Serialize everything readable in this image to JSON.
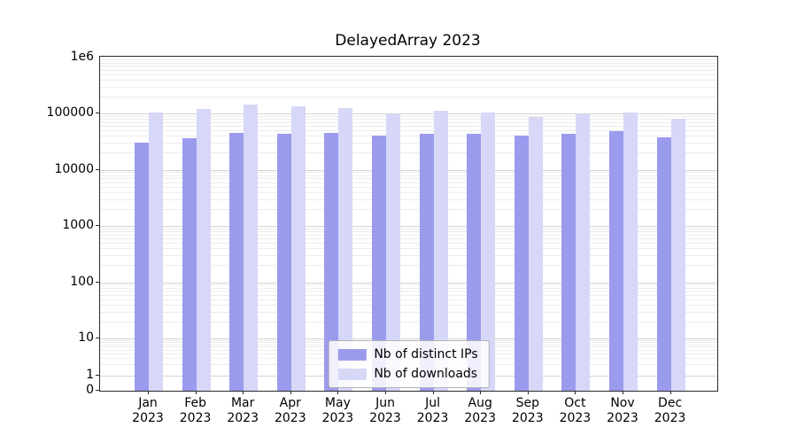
{
  "title": "DelayedArray 2023",
  "colors": {
    "distinct_ips": "#9b9bee",
    "downloads": "#d7d7f8",
    "grid_major": "#d4d4d4",
    "grid_minor": "#ececec",
    "spine": "#2a2a2a"
  },
  "legend": {
    "items": [
      {
        "label": "Nb of distinct IPs",
        "series": "distinct_ips"
      },
      {
        "label": "Nb of downloads",
        "series": "downloads"
      }
    ]
  },
  "chart_data": {
    "type": "bar",
    "yscale": "symlog",
    "title": "DelayedArray 2023",
    "categories": [
      "Jan 2023",
      "Feb 2023",
      "Mar 2023",
      "Apr 2023",
      "May 2023",
      "Jun 2023",
      "Jul 2023",
      "Aug 2023",
      "Sep 2023",
      "Oct 2023",
      "Nov 2023",
      "Dec 2023"
    ],
    "x_ticklabels": [
      {
        "month": "Jan",
        "year": "2023"
      },
      {
        "month": "Feb",
        "year": "2023"
      },
      {
        "month": "Mar",
        "year": "2023"
      },
      {
        "month": "Apr",
        "year": "2023"
      },
      {
        "month": "May",
        "year": "2023"
      },
      {
        "month": "Jun",
        "year": "2023"
      },
      {
        "month": "Jul",
        "year": "2023"
      },
      {
        "month": "Aug",
        "year": "2023"
      },
      {
        "month": "Sep",
        "year": "2023"
      },
      {
        "month": "Oct",
        "year": "2023"
      },
      {
        "month": "Nov",
        "year": "2023"
      },
      {
        "month": "Dec",
        "year": "2023"
      }
    ],
    "series": [
      {
        "name": "Nb of distinct IPs",
        "color_key": "distinct_ips",
        "values": [
          30000,
          36000,
          45000,
          43000,
          45000,
          41000,
          44000,
          43000,
          41000,
          44000,
          48000,
          37000
        ]
      },
      {
        "name": "Nb of downloads",
        "color_key": "downloads",
        "values": [
          105000,
          120000,
          145000,
          135000,
          125000,
          98000,
          110000,
          103000,
          87000,
          97000,
          103000,
          81000
        ]
      }
    ],
    "y_ticks": [
      {
        "value": 0,
        "label": "0"
      },
      {
        "value": 1,
        "label": "1"
      },
      {
        "value": 10,
        "label": "10"
      },
      {
        "value": 100,
        "label": "100"
      },
      {
        "value": 1000,
        "label": "1000"
      },
      {
        "value": 10000,
        "label": "10000"
      },
      {
        "value": 100000,
        "label": "100000"
      },
      {
        "value": 1000000,
        "label": "1e6"
      }
    ],
    "ylim": [
      0,
      1000000
    ],
    "grid": "both",
    "legend_position": "lower center"
  }
}
